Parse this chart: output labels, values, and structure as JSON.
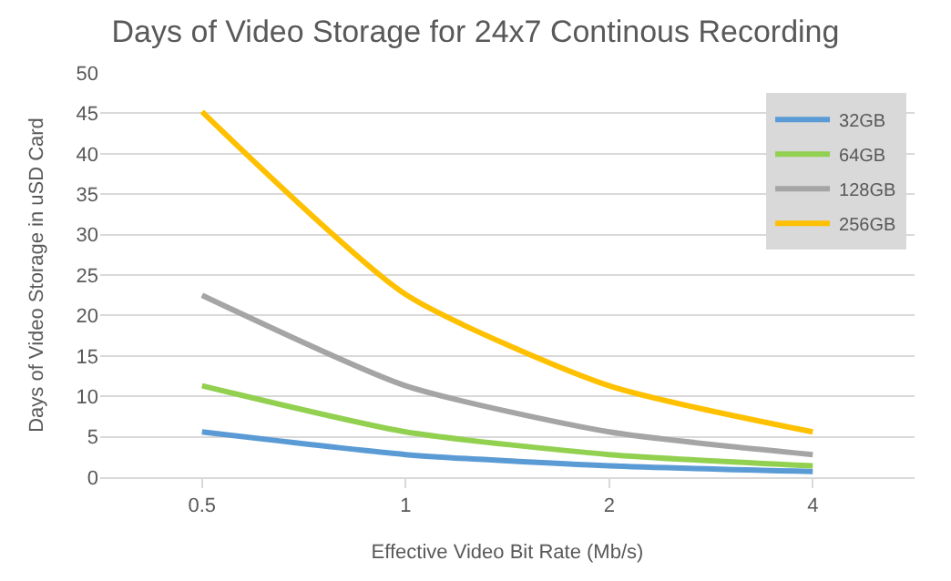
{
  "chart_data": {
    "type": "line",
    "title": "Days of Video Storage for 24x7 Continous Recording",
    "xlabel": "Effective Video Bit Rate (Mb/s)",
    "ylabel": "Days of Video Storage in uSD Card",
    "categories": [
      "0.5",
      "1",
      "2",
      "4"
    ],
    "series": [
      {
        "name": "32GB",
        "color": "#5b9bd5",
        "values": [
          5.6,
          2.8,
          1.4,
          0.7
        ]
      },
      {
        "name": "64GB",
        "color": "#92d050",
        "values": [
          11.3,
          5.6,
          2.8,
          1.4
        ]
      },
      {
        "name": "128GB",
        "color": "#a5a5a5",
        "values": [
          22.5,
          11.3,
          5.6,
          2.8
        ]
      },
      {
        "name": "256GB",
        "color": "#ffc000",
        "values": [
          45.2,
          22.6,
          11.3,
          5.6
        ]
      }
    ],
    "ylim": [
      0,
      50
    ],
    "yticks": [
      0,
      5,
      10,
      15,
      20,
      25,
      30,
      35,
      40,
      45,
      50
    ],
    "grid": "y",
    "legend": "top right",
    "marker": "none",
    "line_style": "solid"
  }
}
